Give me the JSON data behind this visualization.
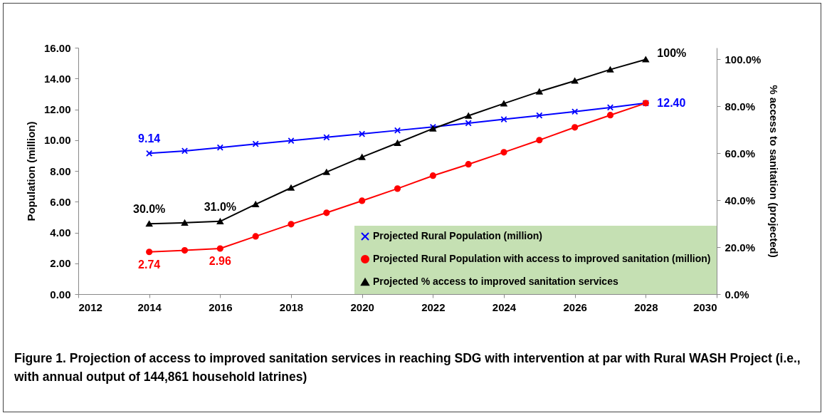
{
  "chart_data": {
    "type": "line",
    "ylabel": "Population (million)",
    "y2label": "% access to sanitation (projected)",
    "x": [
      2014,
      2015,
      2016,
      2017,
      2018,
      2019,
      2020,
      2021,
      2022,
      2023,
      2024,
      2025,
      2026,
      2027,
      2028
    ],
    "xlim": [
      2012,
      2030
    ],
    "xticks": [
      2012,
      2014,
      2016,
      2018,
      2020,
      2022,
      2024,
      2026,
      2028,
      2030
    ],
    "ylim": [
      0,
      16
    ],
    "yticks": [
      {
        "value": 0,
        "label": "0.00"
      },
      {
        "value": 2,
        "label": "2.00"
      },
      {
        "value": 4,
        "label": "4.00"
      },
      {
        "value": 6,
        "label": "6.00"
      },
      {
        "value": 8,
        "label": "8.00"
      },
      {
        "value": 10,
        "label": "10.00"
      },
      {
        "value": 12,
        "label": "12.00"
      },
      {
        "value": 14,
        "label": "14.00"
      },
      {
        "value": 16,
        "label": "16.00"
      }
    ],
    "y2lim": [
      0,
      105
    ],
    "y2ticks": [
      {
        "value": 0,
        "label": "0.0%"
      },
      {
        "value": 20,
        "label": "20.0%"
      },
      {
        "value": 40,
        "label": "40.0%"
      },
      {
        "value": 60,
        "label": "60.0%"
      },
      {
        "value": 80,
        "label": "80.0%"
      },
      {
        "value": 100,
        "label": "100.0%"
      }
    ],
    "grid": false,
    "legend": "bottom right",
    "series": [
      {
        "name": "Projected Rural Population (million)",
        "color": "#0000ff",
        "marker": "cross",
        "values": [
          9.14,
          9.3,
          9.52,
          9.75,
          9.96,
          10.18,
          10.4,
          10.63,
          10.85,
          11.1,
          11.35,
          11.6,
          11.85,
          12.12,
          12.4
        ],
        "value_labels": [
          "9.14",
          null,
          null,
          null,
          null,
          null,
          null,
          null,
          null,
          null,
          null,
          null,
          null,
          null,
          "12.40"
        ]
      },
      {
        "name": "Projected Rural Population with access to improved sanitation (million)",
        "color": "#ff0000",
        "marker": "circle",
        "values": [
          2.74,
          2.84,
          2.96,
          3.75,
          4.54,
          5.28,
          6.06,
          6.85,
          7.69,
          8.43,
          9.21,
          10.0,
          10.83,
          11.62,
          12.4
        ],
        "value_labels": [
          "2.74",
          null,
          "2.96",
          null,
          null,
          null,
          null,
          null,
          null,
          null,
          null,
          null,
          null,
          null,
          null
        ]
      },
      {
        "name": "Projected % access to improved sanitation services",
        "color": "#000000",
        "marker": "triangle",
        "axis": "y2",
        "values": [
          30.0,
          30.4,
          31.0,
          38.3,
          45.3,
          52.0,
          58.4,
          64.4,
          70.5,
          76.0,
          81.2,
          86.3,
          90.9,
          95.7,
          100
        ],
        "value_labels": [
          "30.0%",
          null,
          "31.0%",
          null,
          null,
          null,
          null,
          null,
          null,
          null,
          null,
          null,
          null,
          null,
          "100%"
        ]
      }
    ],
    "annotations": [
      "Figure 1. Projection of access to improved sanitation services in reaching SDG with intervention at par with Rural WASH Project (i.e., with annual output of 144,861 household latrines)"
    ]
  }
}
